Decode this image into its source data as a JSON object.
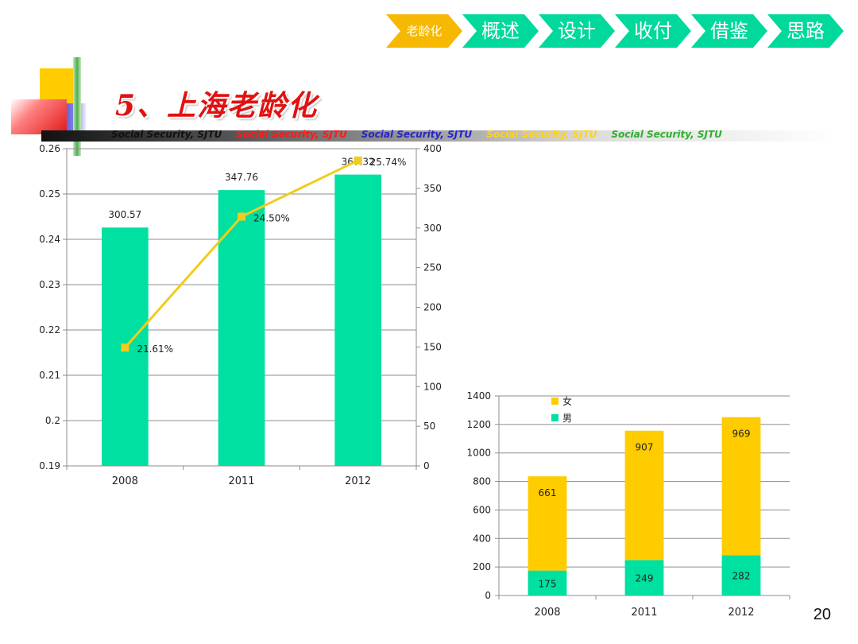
{
  "nav": {
    "tabs": [
      {
        "label": "老龄化",
        "active": true
      },
      {
        "label": "概述",
        "active": false
      },
      {
        "label": "设计",
        "active": false
      },
      {
        "label": "收付",
        "active": false
      },
      {
        "label": "借鉴",
        "active": false
      },
      {
        "label": "思路",
        "active": false
      }
    ],
    "active_color": "#f6b800",
    "inactive_color": "#00d89c"
  },
  "slide": {
    "title": "5、上海老龄化",
    "tagline": [
      {
        "text": "Social Security, SJTU",
        "color": "#111111"
      },
      {
        "text": "Social Security, SJTU",
        "color": "#ff1a1a"
      },
      {
        "text": "Social Security, SJTU",
        "color": "#2424c8"
      },
      {
        "text": "Social Security, SJTU",
        "color": "#ffd21e"
      },
      {
        "text": "Social Security, SJTU",
        "color": "#2fae2f"
      }
    ],
    "page_number": "20"
  },
  "chart_data": [
    {
      "type": "bar+line",
      "categories": [
        "2008",
        "2011",
        "2012"
      ],
      "bar_series": {
        "values": [
          300.57,
          347.76,
          367.32
        ],
        "labels": [
          "300.57",
          "347.76",
          "367.32"
        ],
        "color": "#00e0a0",
        "axis": "right"
      },
      "line_series": {
        "values": [
          0.2161,
          0.245,
          0.2574
        ],
        "labels": [
          "21.61%",
          "24.50%",
          "25.74%"
        ],
        "color": "#f2cc1c",
        "axis": "left"
      },
      "left_axis": {
        "min": 0.19,
        "max": 0.26,
        "step": 0.01,
        "ticks": [
          "0.19",
          "0.2",
          "0.21",
          "0.22",
          "0.23",
          "0.24",
          "0.25",
          "0.26"
        ]
      },
      "right_axis": {
        "min": 0,
        "max": 400,
        "step": 50,
        "ticks": [
          "0",
          "50",
          "100",
          "150",
          "200",
          "250",
          "300",
          "350",
          "400"
        ]
      },
      "grid": true
    },
    {
      "type": "stacked-bar",
      "categories": [
        "2008",
        "2011",
        "2012"
      ],
      "series": [
        {
          "name": "男",
          "values": [
            175,
            249,
            282
          ],
          "labels": [
            "175",
            "249",
            "282"
          ],
          "color": "#00e0a0"
        },
        {
          "name": "女",
          "values": [
            661,
            907,
            969
          ],
          "labels": [
            "661",
            "907",
            "969"
          ],
          "color": "#ffcc00"
        }
      ],
      "y_axis": {
        "min": 0,
        "max": 1400,
        "step": 200,
        "ticks": [
          "0",
          "200",
          "400",
          "600",
          "800",
          "1000",
          "1200",
          "1400"
        ]
      },
      "legend_position": "top-left",
      "grid": true
    }
  ]
}
